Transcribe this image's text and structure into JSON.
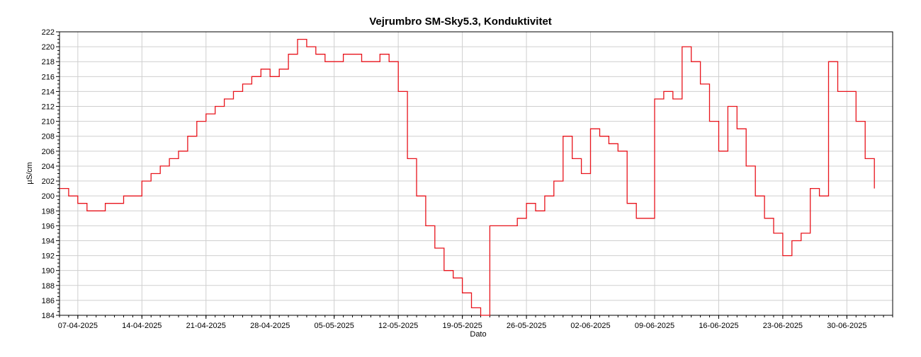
{
  "chart_data": {
    "type": "line",
    "title": "Vejrumbro SM-Sky5.3, Konduktivitet",
    "xlabel": "Dato",
    "ylabel": "µS/cm",
    "ylim": [
      184,
      222
    ],
    "yticks": [
      184,
      186,
      188,
      190,
      192,
      194,
      196,
      198,
      200,
      202,
      204,
      206,
      208,
      210,
      212,
      214,
      216,
      218,
      220,
      222
    ],
    "xlim": [
      "2025-04-05",
      "2025-07-05"
    ],
    "xticks": [
      "07-04-2025",
      "14-04-2025",
      "21-04-2025",
      "28-04-2025",
      "05-05-2025",
      "12-05-2025",
      "19-05-2025",
      "26-05-2025",
      "02-06-2025",
      "09-06-2025",
      "16-06-2025",
      "23-06-2025",
      "30-06-2025"
    ],
    "grid": true,
    "line_color": "#e8141c",
    "series": [
      {
        "x": [
          "2025-04-05",
          "2025-04-06",
          "2025-04-07",
          "2025-04-08",
          "2025-04-09",
          "2025-04-10",
          "2025-04-11",
          "2025-04-12",
          "2025-04-13",
          "2025-04-14",
          "2025-04-15",
          "2025-04-16",
          "2025-04-17",
          "2025-04-18",
          "2025-04-19",
          "2025-04-20",
          "2025-04-21",
          "2025-04-22",
          "2025-04-23",
          "2025-04-24",
          "2025-04-25",
          "2025-04-26",
          "2025-04-27",
          "2025-04-28",
          "2025-04-29",
          "2025-04-30",
          "2025-05-01",
          "2025-05-02",
          "2025-05-03",
          "2025-05-04",
          "2025-05-05",
          "2025-05-06",
          "2025-05-07",
          "2025-05-08",
          "2025-05-09",
          "2025-05-10",
          "2025-05-11",
          "2025-05-12",
          "2025-05-13",
          "2025-05-14",
          "2025-05-15",
          "2025-05-16",
          "2025-05-17",
          "2025-05-18",
          "2025-05-19",
          "2025-05-20",
          "2025-05-21",
          "2025-05-22",
          "2025-05-23",
          "2025-05-24",
          "2025-05-25",
          "2025-05-26",
          "2025-05-27",
          "2025-05-28",
          "2025-05-29",
          "2025-05-30",
          "2025-05-31",
          "2025-06-01",
          "2025-06-02",
          "2025-06-03",
          "2025-06-04",
          "2025-06-05",
          "2025-06-06",
          "2025-06-07",
          "2025-06-08",
          "2025-06-09",
          "2025-06-10",
          "2025-06-11",
          "2025-06-12",
          "2025-06-13",
          "2025-06-14",
          "2025-06-15",
          "2025-06-16",
          "2025-06-17",
          "2025-06-18",
          "2025-06-19",
          "2025-06-20",
          "2025-06-21",
          "2025-06-22",
          "2025-06-23",
          "2025-06-24",
          "2025-06-25",
          "2025-06-26",
          "2025-06-27",
          "2025-06-28",
          "2025-06-29",
          "2025-06-30",
          "2025-07-01",
          "2025-07-02",
          "2025-07-03"
        ],
        "y": [
          201,
          200,
          199,
          198,
          198,
          199,
          199,
          200,
          200,
          202,
          203,
          204,
          205,
          206,
          208,
          210,
          211,
          212,
          213,
          214,
          215,
          216,
          217,
          216,
          217,
          219,
          221,
          220,
          219,
          218,
          218,
          219,
          219,
          218,
          218,
          219,
          218,
          214,
          205,
          200,
          196,
          193,
          190,
          189,
          187,
          185,
          184,
          196,
          196,
          196,
          197,
          199,
          198,
          200,
          202,
          208,
          205,
          203,
          209,
          208,
          207,
          206,
          199,
          197,
          197,
          213,
          214,
          213,
          220,
          218,
          215,
          210,
          206,
          212,
          209,
          204,
          200,
          197,
          195,
          192,
          194,
          195,
          201,
          200,
          218,
          214,
          214,
          210,
          205,
          201
        ]
      }
    ]
  }
}
